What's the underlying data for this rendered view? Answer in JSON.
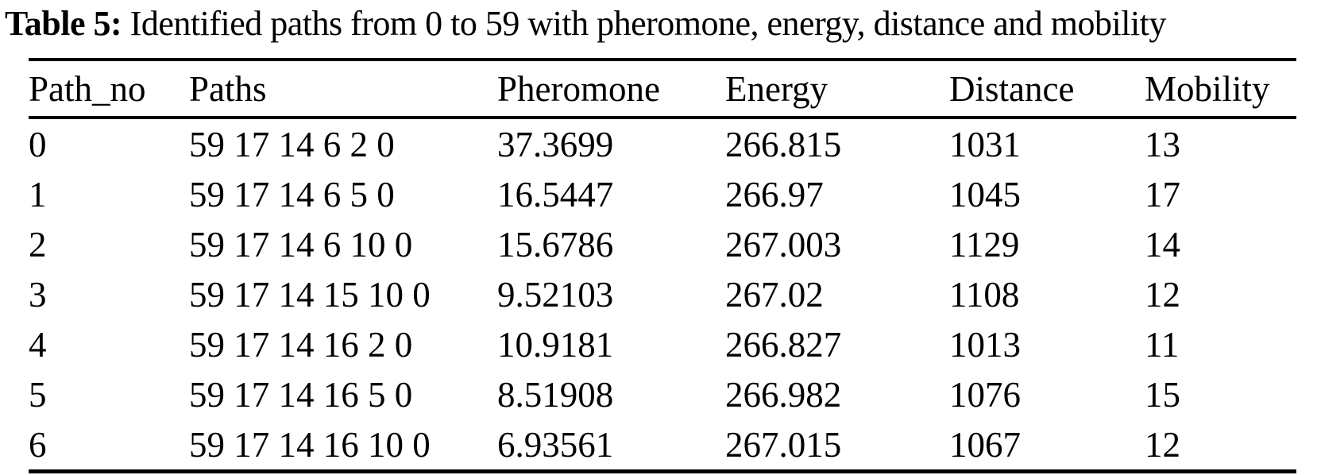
{
  "colors": {
    "background": "#ffffff",
    "text": "#000000",
    "rule": "#000000"
  },
  "caption": {
    "label": "Table 5:",
    "text": "Identified paths from 0 to 59 with pheromone, energy, distance and mobility"
  },
  "table": {
    "columns": [
      "Path_no",
      "Paths",
      "Pheromone",
      "Energy",
      "Distance",
      "Mobility"
    ],
    "rows": [
      [
        "0",
        "59 17 14 6 2 0",
        "37.3699",
        "266.815",
        "1031",
        "13"
      ],
      [
        "1",
        "59 17 14 6 5 0",
        "16.5447",
        "266.97",
        "1045",
        "17"
      ],
      [
        "2",
        "59 17 14 6 10 0",
        "15.6786",
        "267.003",
        "1129",
        "14"
      ],
      [
        "3",
        "59 17 14 15 10 0",
        "9.52103",
        "267.02",
        "1108",
        "12"
      ],
      [
        "4",
        "59 17 14 16 2 0",
        "10.9181",
        "266.827",
        "1013",
        "11"
      ],
      [
        "5",
        "59 17 14 16 5 0",
        "8.51908",
        "266.982",
        "1076",
        "15"
      ],
      [
        "6",
        "59 17 14 16 10 0",
        "6.93561",
        "267.015",
        "1067",
        "12"
      ]
    ]
  }
}
